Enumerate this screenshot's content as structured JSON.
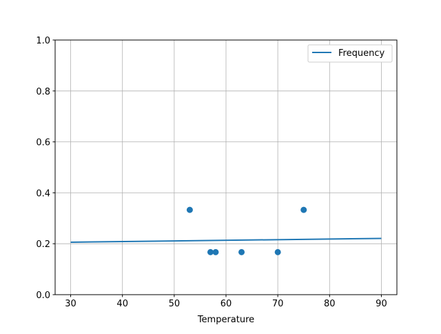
{
  "chart_data": {
    "type": "scatter+line",
    "title": "",
    "xlabel": "Temperature",
    "ylabel": "",
    "xlim": [
      27,
      93
    ],
    "ylim": [
      0,
      1
    ],
    "grid": true,
    "legend_position": "top-right",
    "xticks": [
      30,
      40,
      50,
      60,
      70,
      80,
      90
    ],
    "yticks": [
      "0.0",
      "0.2",
      "0.4",
      "0.6",
      "0.8",
      "1.0"
    ],
    "color": "#1f77b4",
    "series": [
      {
        "name": "Frequency",
        "type": "line",
        "x": [
          30,
          90
        ],
        "y": [
          0.206,
          0.221
        ]
      },
      {
        "type": "scatter",
        "x": [
          53,
          57,
          58,
          63,
          70,
          75
        ],
        "y": [
          0.333,
          0.167,
          0.167,
          0.167,
          0.167,
          0.333
        ]
      }
    ]
  }
}
